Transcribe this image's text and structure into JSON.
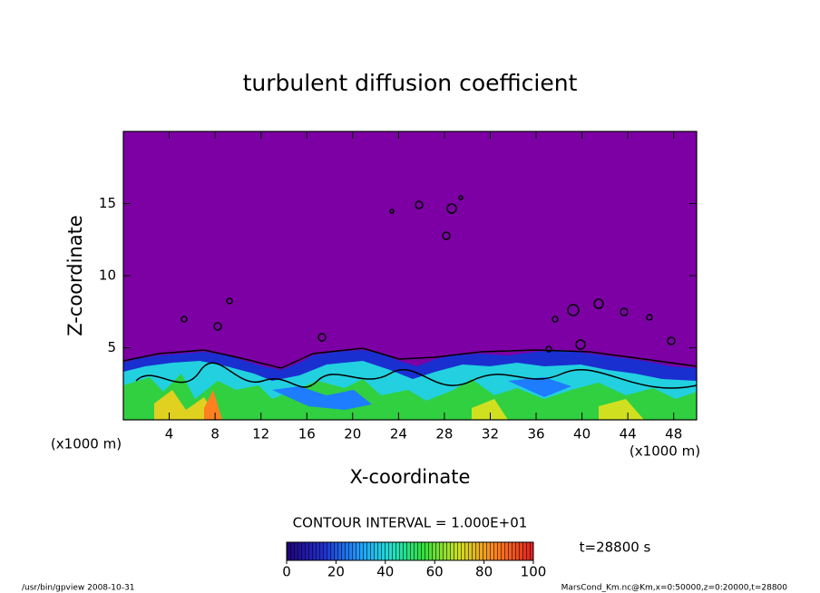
{
  "chart_data": {
    "type": "contour",
    "title": "turbulent diffusion coefficient",
    "xlabel": "X-coordinate",
    "ylabel": "Z-coordinate",
    "x_unit": "(x1000 m)",
    "y_unit": "(x1000 m)",
    "xlim": [
      0,
      50
    ],
    "xticks": [
      4,
      8,
      12,
      16,
      20,
      24,
      28,
      32,
      36,
      40,
      44,
      48
    ],
    "ylim": [
      0,
      20
    ],
    "yticks": [
      5,
      10,
      15
    ],
    "colorbar": {
      "label": "CONTOUR INTERVAL = 1.000E+01",
      "lim": [
        0,
        100
      ],
      "ticks": [
        0,
        20,
        40,
        60,
        80,
        100
      ]
    },
    "annotation": "t=28800 s",
    "footer_left": "/usr/bin/gpview  2008-10-31",
    "footer_right": "MarsCond_Km.nc@Km,x=0:50000,z=0:20000,t=28800"
  }
}
